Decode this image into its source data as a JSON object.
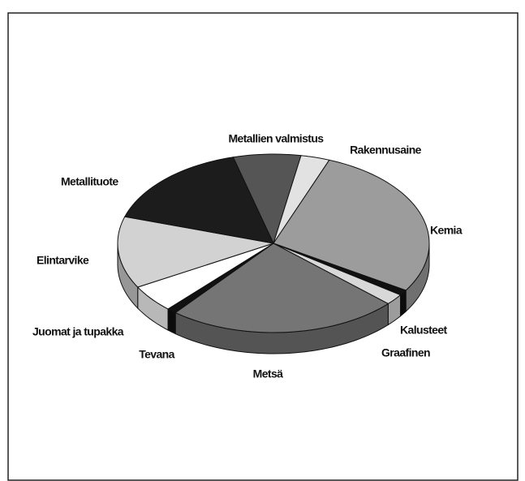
{
  "chart_data": {
    "type": "pie",
    "categories": [
      "Metallien valmistus",
      "Rakennusaine",
      "Kemia",
      "Kalusteet",
      "Graafinen",
      "Metsä",
      "Tevana",
      "Juomat ja tupakka",
      "Elintarvike",
      "Metallituote"
    ],
    "values": [
      7,
      3,
      28,
      1,
      2,
      24,
      1,
      5,
      13,
      16
    ],
    "colors": [
      "#555555",
      "#e2e2e2",
      "#9c9c9c",
      "#111111",
      "#d8d8d8",
      "#757575",
      "#111111",
      "#ffffff",
      "#d2d2d2",
      "#1c1c1c"
    ]
  }
}
